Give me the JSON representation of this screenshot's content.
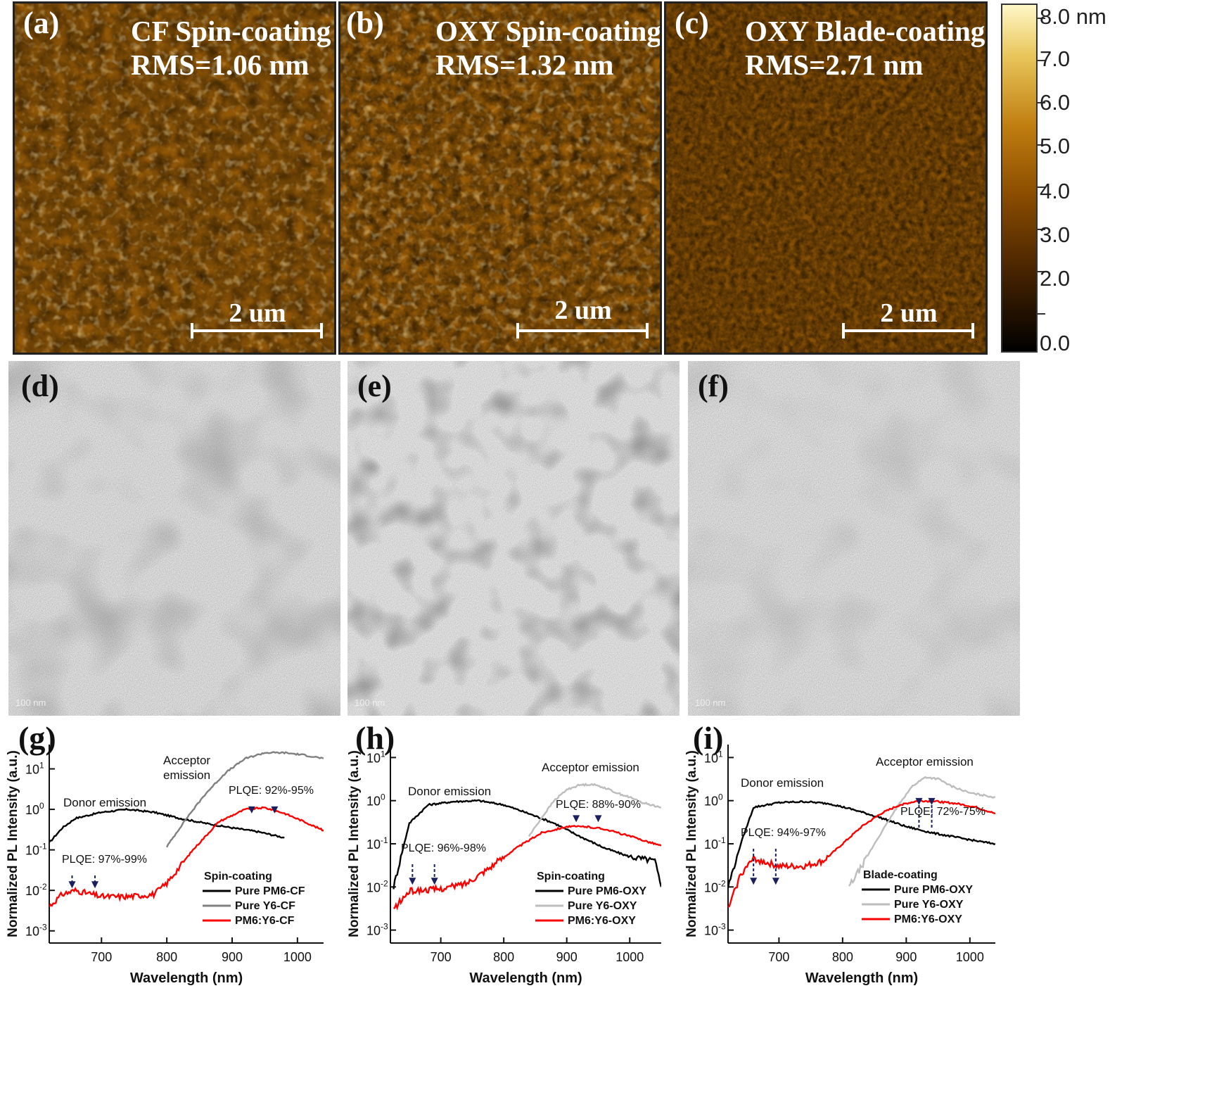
{
  "afm_panels": [
    {
      "label": "(a)",
      "title": "CF Spin-coating",
      "rms": "RMS=1.06 nm",
      "scale": "2 um"
    },
    {
      "label": "(b)",
      "title": "OXY Spin-coating",
      "rms": "RMS=1.32 nm",
      "scale": "2 um"
    },
    {
      "label": "(c)",
      "title": "OXY Blade-coating",
      "rms": "RMS=2.71 nm",
      "scale": "2 um"
    }
  ],
  "colorbar": {
    "ticks": [
      "8.0 nm",
      "7.0",
      "6.0",
      "5.0",
      "4.0",
      "3.0",
      "2.0",
      "0.0"
    ],
    "colors": [
      "#000000",
      "#3d1e00",
      "#8a4c00",
      "#c07e10",
      "#e8c55a",
      "#fff8c8"
    ]
  },
  "tem_panels": [
    {
      "label": "(d)",
      "scale": "100 nm"
    },
    {
      "label": "(e)",
      "scale": "100 nm"
    },
    {
      "label": "(f)",
      "scale": "100 nm"
    }
  ],
  "plots": [
    {
      "label": "(g)"
    },
    {
      "label": "(h)"
    },
    {
      "label": "(i)"
    }
  ],
  "chart_data": [
    {
      "type": "line",
      "ylabel": "Normalized PL Intensity (a.u.)",
      "xlabel": "Wavelength (nm)",
      "xlim": [
        620,
        1040
      ],
      "ylim_log10": [
        -3.3,
        1.6
      ],
      "yscale": "log",
      "x_ticks": [
        "700",
        "800",
        "900",
        "1000"
      ],
      "y_ticks": [
        "10-3",
        "10-2",
        "10-1",
        "100",
        "101"
      ],
      "legend_title": "Spin-coating",
      "annotations": [
        "Donor emission",
        "Acceptor emission",
        "PLQE: 97%-99%",
        "PLQE: 92%-95%"
      ],
      "arrows_x": [
        655,
        690,
        930,
        965
      ],
      "series": [
        {
          "name": "Pure PM6-CF",
          "color": "#000000",
          "x": [
            620,
            640,
            660,
            700,
            740,
            780,
            820,
            860,
            900,
            940,
            980
          ],
          "y": [
            0.15,
            0.35,
            0.6,
            0.85,
            1.0,
            0.85,
            0.6,
            0.45,
            0.35,
            0.28,
            0.2
          ]
        },
        {
          "name": "Pure Y6-CF",
          "color": "#808080",
          "x": [
            800,
            830,
            860,
            890,
            920,
            950,
            980,
            1010,
            1040
          ],
          "y": [
            0.12,
            0.6,
            2.5,
            8,
            18,
            25,
            25,
            22,
            18
          ]
        },
        {
          "name": "PM6:Y6-CF",
          "color": "#ff0000",
          "x": [
            620,
            640,
            660,
            700,
            740,
            780,
            800,
            840,
            880,
            920,
            950,
            980,
            1010,
            1040
          ],
          "y": [
            0.004,
            0.008,
            0.01,
            0.007,
            0.007,
            0.008,
            0.015,
            0.1,
            0.5,
            1.0,
            1.1,
            0.8,
            0.5,
            0.3
          ]
        }
      ]
    },
    {
      "type": "line",
      "ylabel": "Normalized PL Intensity (a.u.)",
      "xlabel": "Wavelength (nm)",
      "xlim": [
        620,
        1050
      ],
      "ylim_log10": [
        -3.3,
        1.3
      ],
      "yscale": "log",
      "x_ticks": [
        "700",
        "800",
        "900",
        "1000"
      ],
      "y_ticks": [
        "10-3",
        "10-2",
        "10-1",
        "100",
        "101"
      ],
      "legend_title": "Spin-coating",
      "annotations": [
        "Donor emission",
        "Acceptor emission",
        "PLQE: 96%-98%",
        "PLQE: 88%-90%"
      ],
      "arrows_x": [
        655,
        690,
        915,
        950
      ],
      "series": [
        {
          "name": "Pure PM6-OXY",
          "color": "#000000",
          "x": [
            625,
            650,
            680,
            720,
            760,
            800,
            840,
            880,
            920,
            960,
            1000,
            1040,
            1050
          ],
          "y": [
            0.01,
            0.3,
            0.8,
            0.95,
            1.0,
            0.8,
            0.5,
            0.3,
            0.15,
            0.08,
            0.05,
            0.04,
            0.01
          ]
        },
        {
          "name": "Pure Y6-OXY",
          "color": "#bdbdbd",
          "x": [
            840,
            860,
            880,
            900,
            920,
            940,
            960,
            980,
            1000,
            1020,
            1050
          ],
          "y": [
            0.15,
            0.4,
            1.0,
            1.8,
            2.3,
            2.4,
            2.0,
            1.5,
            1.2,
            0.9,
            0.7
          ]
        },
        {
          "name": "PM6:Y6-OXY",
          "color": "#ff0000",
          "x": [
            625,
            650,
            700,
            740,
            780,
            820,
            860,
            900,
            930,
            960,
            1000,
            1040,
            1050
          ],
          "y": [
            0.003,
            0.008,
            0.009,
            0.012,
            0.03,
            0.08,
            0.18,
            0.25,
            0.25,
            0.22,
            0.15,
            0.1,
            0.09
          ]
        }
      ]
    },
    {
      "type": "line",
      "ylabel": "Normalized PL Intensity (a.u.)",
      "xlabel": "Wavelength (nm)",
      "xlim": [
        620,
        1040
      ],
      "ylim_log10": [
        -3.3,
        1.3
      ],
      "yscale": "log",
      "x_ticks": [
        "700",
        "800",
        "900",
        "1000"
      ],
      "y_ticks": [
        "10-3",
        "10-2",
        "10-1",
        "100",
        "101"
      ],
      "legend_title": "Blade-coating",
      "annotations": [
        "Donor emission",
        "Acceptor emission",
        "PLQE: 94%-97%",
        "PLQE: 72%-75%"
      ],
      "arrows_x": [
        660,
        695,
        920,
        940
      ],
      "series": [
        {
          "name": "Pure PM6-OXY",
          "color": "#000000",
          "x": [
            620,
            640,
            660,
            700,
            740,
            780,
            820,
            860,
            900,
            940,
            980,
            1020,
            1040
          ],
          "y": [
            0.01,
            0.1,
            0.7,
            0.9,
            0.95,
            0.85,
            0.6,
            0.4,
            0.25,
            0.18,
            0.14,
            0.11,
            0.1
          ]
        },
        {
          "name": "Pure Y6-OXY",
          "color": "#bdbdbd",
          "x": [
            810,
            830,
            850,
            870,
            890,
            910,
            930,
            950,
            970,
            1000,
            1040
          ],
          "y": [
            0.01,
            0.03,
            0.1,
            0.3,
            0.9,
            2.2,
            3.5,
            3.2,
            2.2,
            1.5,
            1.2
          ]
        },
        {
          "name": "PM6:Y6-OXY",
          "color": "#ff0000",
          "x": [
            620,
            640,
            660,
            700,
            740,
            770,
            800,
            830,
            860,
            890,
            920,
            950,
            980,
            1010,
            1040
          ],
          "y": [
            0.003,
            0.02,
            0.045,
            0.03,
            0.03,
            0.04,
            0.1,
            0.25,
            0.5,
            0.8,
            1.0,
            0.95,
            0.85,
            0.7,
            0.5
          ]
        }
      ]
    }
  ]
}
